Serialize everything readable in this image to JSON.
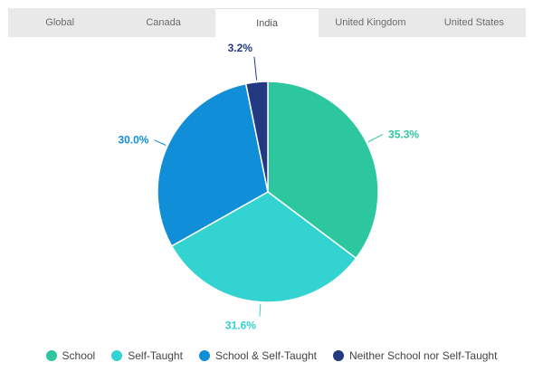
{
  "tabs": [
    {
      "label": "Global",
      "active": false
    },
    {
      "label": "Canada",
      "active": false
    },
    {
      "label": "India",
      "active": true
    },
    {
      "label": "United Kingdom",
      "active": false
    },
    {
      "label": "United States",
      "active": false
    }
  ],
  "chart_data": {
    "type": "pie",
    "categories": [
      "School",
      "Self-Taught",
      "School & Self-Taught",
      "Neither School nor Self-Taught"
    ],
    "values": [
      35.3,
      31.6,
      30.0,
      3.2
    ],
    "value_labels": [
      "35.3%",
      "31.6%",
      "30.0%",
      "3.2%"
    ],
    "colors": [
      "#2dc79f",
      "#33d3d1",
      "#118ed8",
      "#233a82"
    ],
    "legend_position": "bottom",
    "start_angle": "12 o'clock",
    "direction": "clockwise"
  }
}
